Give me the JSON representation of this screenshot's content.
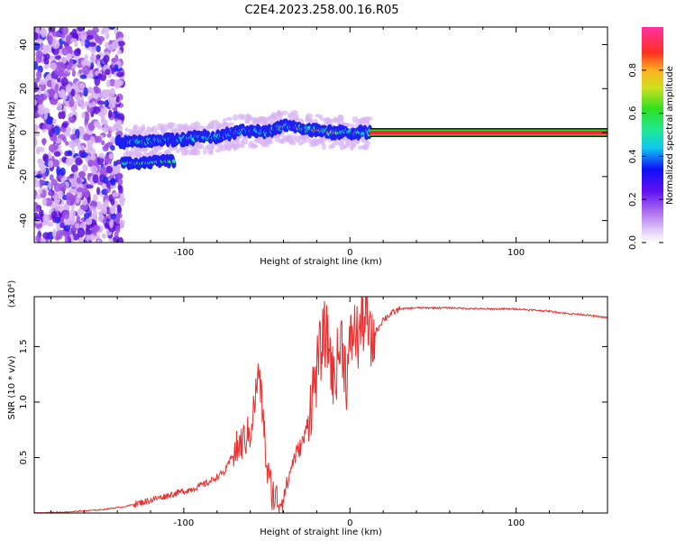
{
  "title": "C2E4.2023.258.00.16.R05",
  "chart_data": [
    {
      "type": "heatmap",
      "xlabel": "Height of straight line (km)",
      "ylabel": "Frequency (Hz)",
      "xlim": [
        -190,
        155
      ],
      "ylim": [
        -50,
        48
      ],
      "x_ticks": [
        -100,
        0,
        100
      ],
      "y_ticks": [
        -40,
        -20,
        0,
        20,
        40
      ],
      "colorbar": {
        "label": "Normalized spectral amplitude",
        "range": [
          0.0,
          1.0
        ],
        "ticks": [
          0.0,
          0.2,
          0.4,
          0.6,
          0.8
        ],
        "tick_labels": [
          "0.0",
          "0.2",
          "0.4",
          "0.6",
          "0.8"
        ],
        "colormap": [
          "#ffffff",
          "#d8b4f2",
          "#9b50e3",
          "#5b10d8",
          "#1f1ff0",
          "#10b8f0",
          "#20e0a0",
          "#38e020",
          "#c8e020",
          "#ffd020",
          "#ff7020",
          "#ff2040",
          "#ff40a0"
        ]
      },
      "ridge": [
        [
          -140,
          -4
        ],
        [
          -130,
          -4
        ],
        [
          -120,
          -4
        ],
        [
          -110,
          -3
        ],
        [
          -100,
          -3
        ],
        [
          -90,
          -2
        ],
        [
          -80,
          -2
        ],
        [
          -70,
          0
        ],
        [
          -60,
          1
        ],
        [
          -50,
          0
        ],
        [
          -40,
          3
        ],
        [
          -30,
          2
        ],
        [
          -20,
          1
        ],
        [
          -10,
          0
        ],
        [
          0,
          0
        ],
        [
          10,
          0
        ],
        [
          155,
          0
        ]
      ],
      "lower_branch": [
        [
          -135,
          -14
        ],
        [
          -125,
          -14
        ],
        [
          -115,
          -13
        ],
        [
          -108,
          -13
        ]
      ],
      "noise_region_x": [
        -190,
        -137
      ],
      "steady_tone": {
        "freq": 0,
        "from_x": 12,
        "to_x": 155
      }
    },
    {
      "type": "line",
      "xlabel": "Height of straight line (km)",
      "ylabel": "SNR (10 * v/v)",
      "y_multiplier": "(x10⁴)",
      "xlim": [
        -190,
        155
      ],
      "ylim": [
        0,
        1.95
      ],
      "x_ticks": [
        -100,
        0,
        100
      ],
      "y_ticks": [
        0.5,
        1.0,
        1.5
      ],
      "y_tick_labels": [
        "0.5",
        "1.0",
        "1.5"
      ],
      "color": "#e83030",
      "series": [
        {
          "x": [
            -190,
            -170,
            -150,
            -135,
            -125,
            -115,
            -105,
            -95,
            -85,
            -75,
            -70,
            -65,
            -60,
            -57,
            -55,
            -52,
            -50,
            -47,
            -45,
            -42,
            -40,
            -37,
            -35,
            -32,
            -30,
            -27,
            -25,
            -22,
            -20,
            -17,
            -15,
            -12,
            -10,
            -7,
            -5,
            -2,
            0,
            2,
            5,
            7,
            10,
            12,
            15,
            18,
            20,
            25,
            30,
            40,
            50,
            60,
            80,
            100,
            110,
            120,
            130,
            140,
            155
          ],
          "y": [
            0.0,
            0.01,
            0.03,
            0.06,
            0.1,
            0.14,
            0.18,
            0.22,
            0.28,
            0.38,
            0.55,
            0.65,
            0.75,
            1.05,
            1.3,
            0.85,
            0.4,
            0.22,
            0.15,
            0.12,
            0.18,
            0.3,
            0.45,
            0.55,
            0.6,
            0.7,
            0.9,
            1.15,
            1.3,
            1.55,
            1.65,
            1.5,
            1.2,
            1.45,
            1.6,
            1.25,
            1.5,
            1.7,
            1.6,
            1.75,
            1.8,
            1.55,
            1.62,
            1.7,
            1.75,
            1.8,
            1.84,
            1.85,
            1.85,
            1.85,
            1.84,
            1.84,
            1.83,
            1.82,
            1.8,
            1.79,
            1.76
          ]
        }
      ]
    }
  ]
}
